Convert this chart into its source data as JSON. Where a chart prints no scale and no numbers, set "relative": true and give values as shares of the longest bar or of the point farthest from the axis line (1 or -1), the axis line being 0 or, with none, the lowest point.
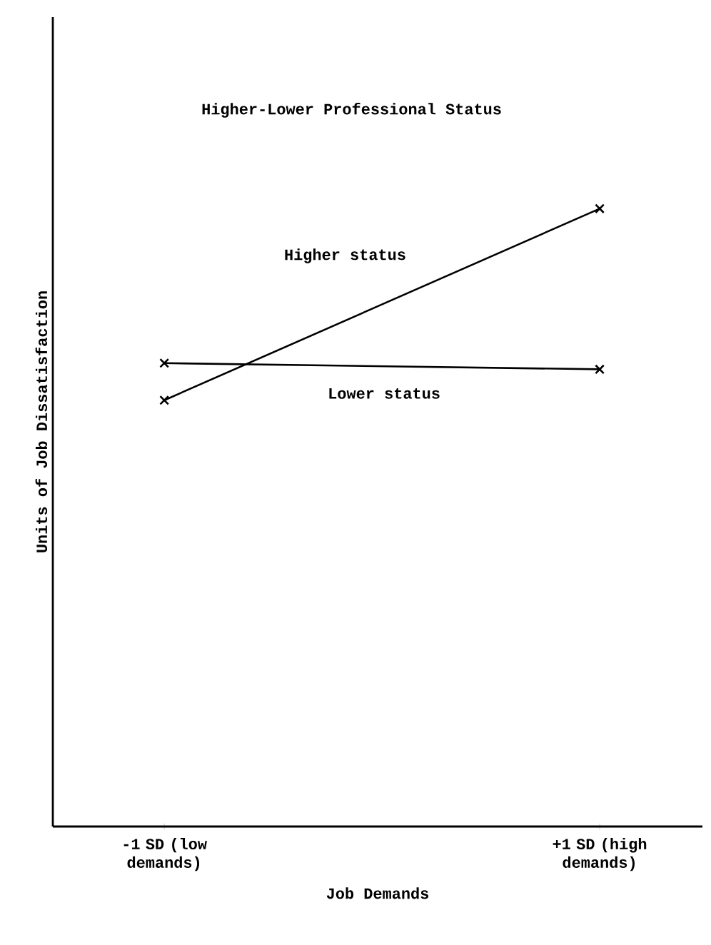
{
  "chart_data": {
    "type": "line",
    "title": "Higher-Lower Professional Status",
    "xlabel": "Job Demands",
    "ylabel": "Units of Job Dissatisfaction",
    "categories": [
      "-1 SD (low demands)",
      "+1 SD (high demands)"
    ],
    "relative": true,
    "marker": "cross",
    "line_style": "solid",
    "series": [
      {
        "name": "Higher status",
        "color": "#000000",
        "values": [
          0.69,
          1.0
        ]
      },
      {
        "name": "Lower status",
        "color": "#000000",
        "values": [
          0.75,
          0.74
        ]
      }
    ]
  }
}
